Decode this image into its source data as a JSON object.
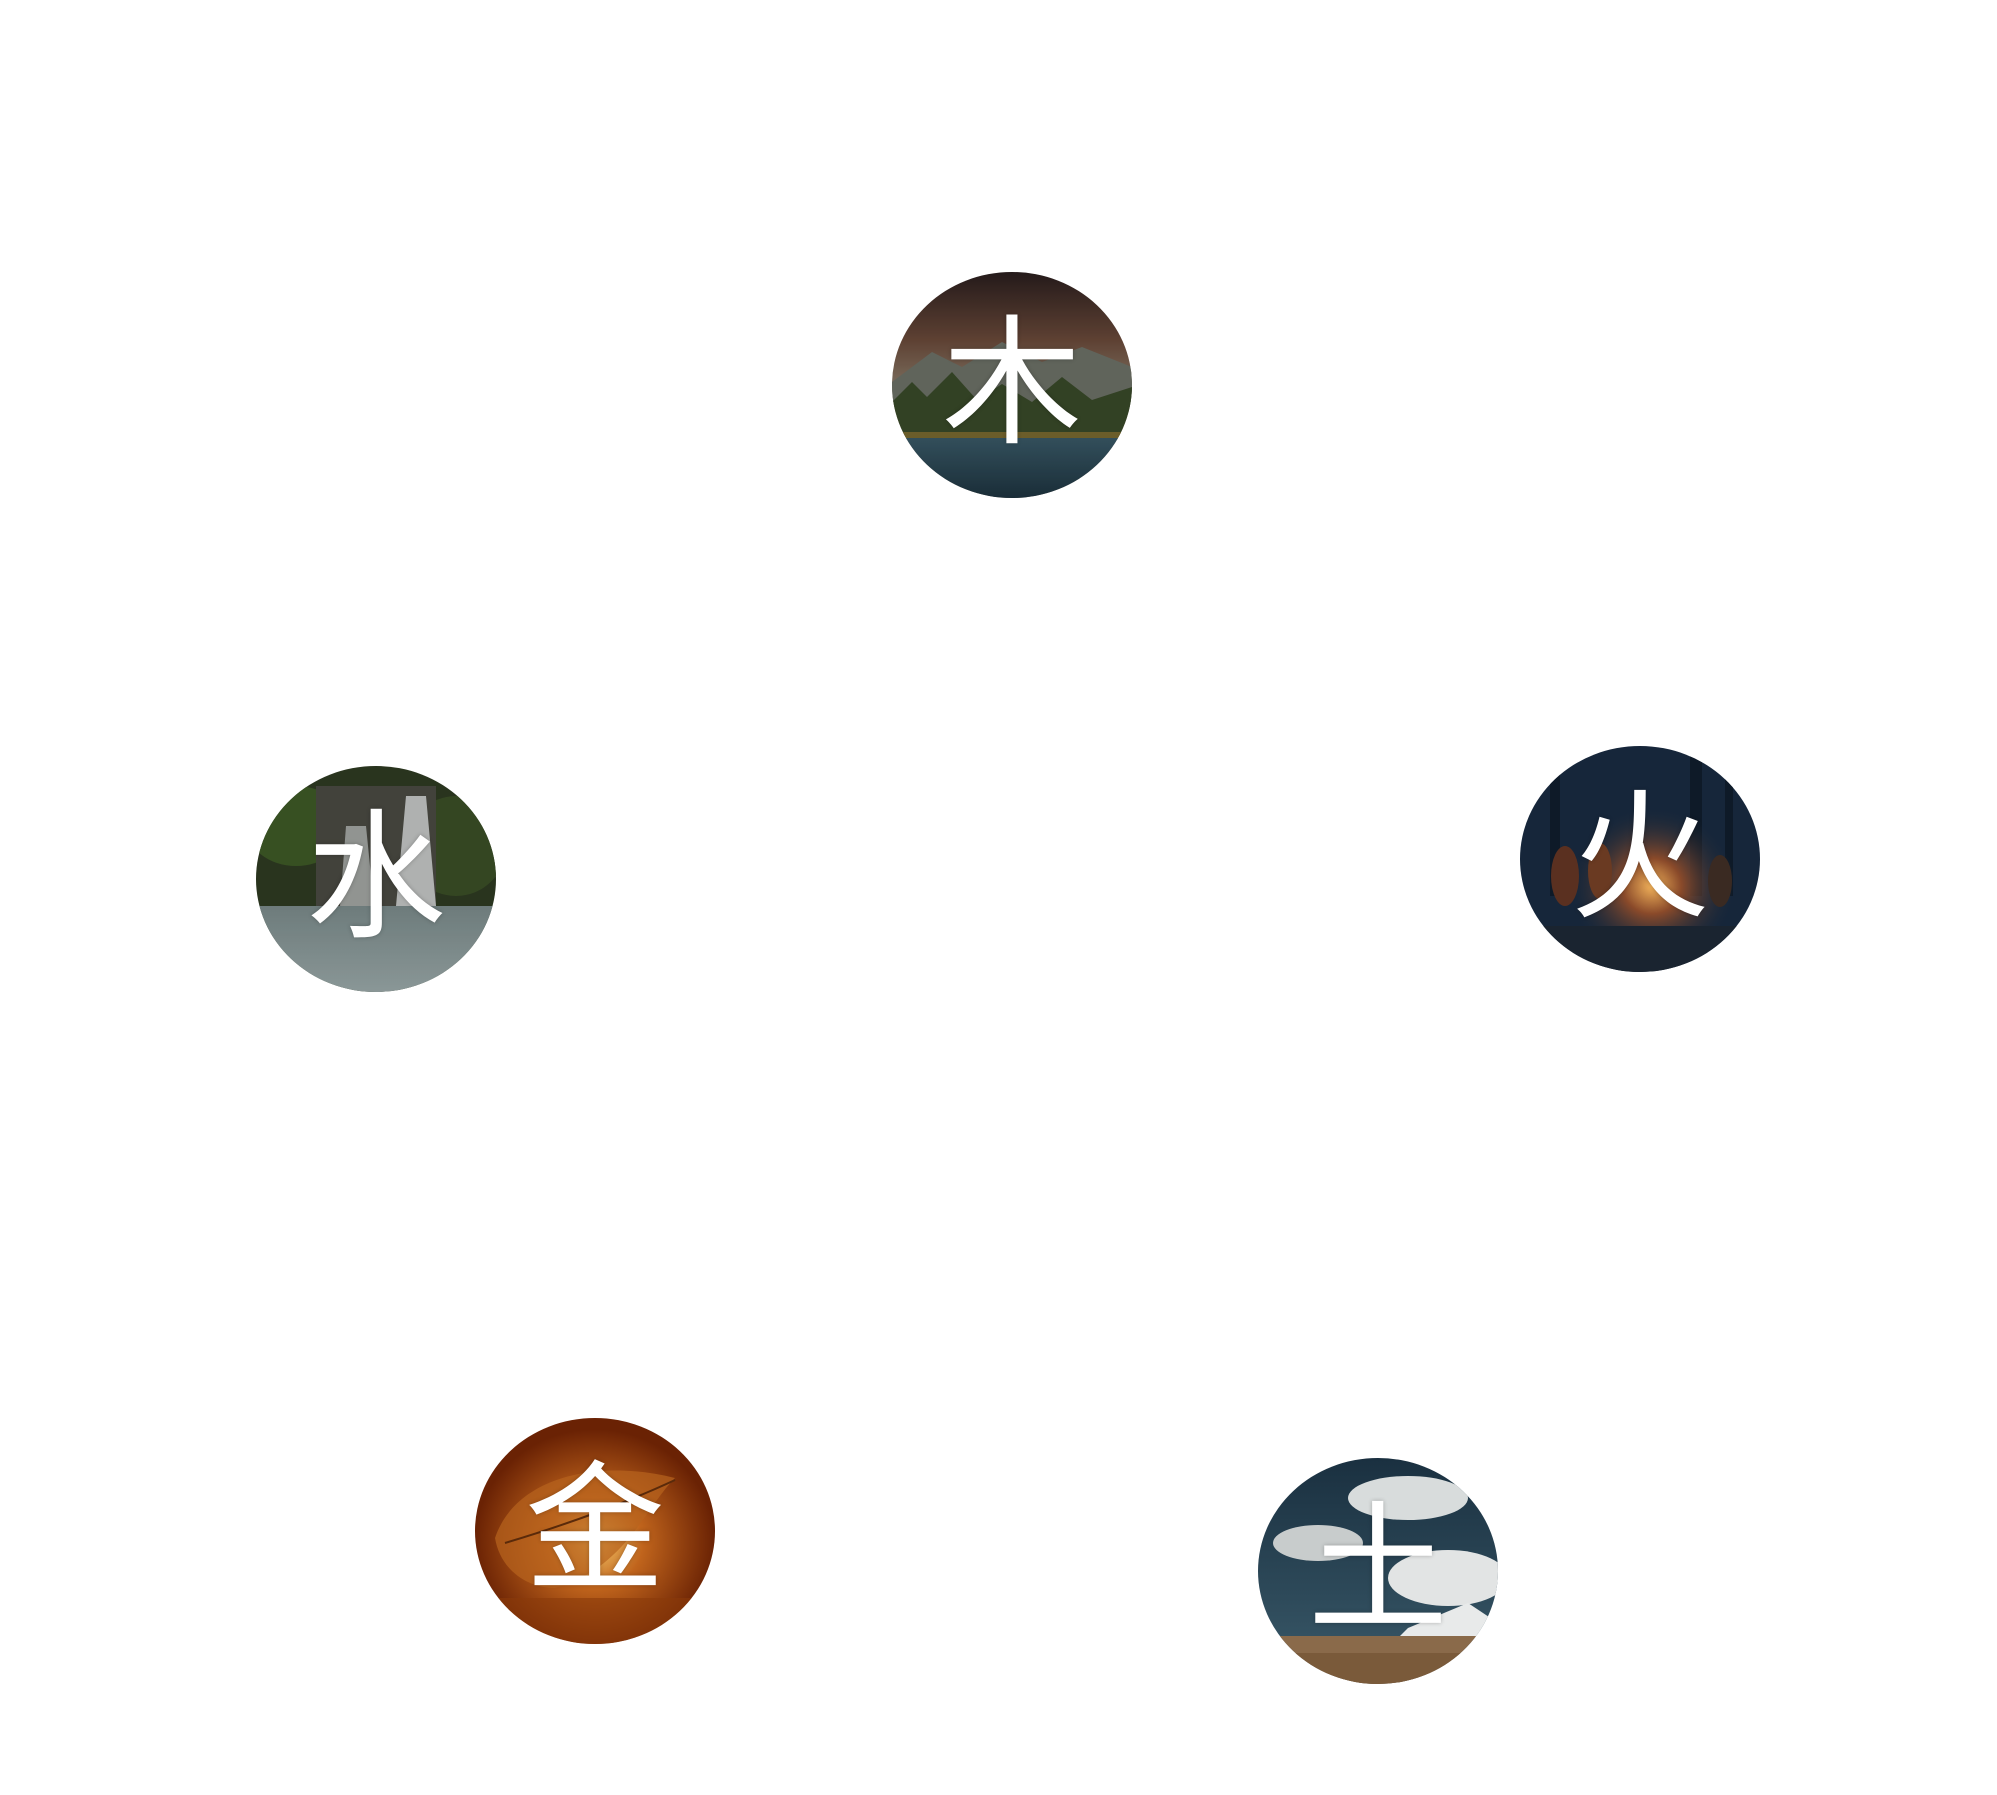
{
  "elements": {
    "wood": {
      "glyph": "木",
      "scene": "mountain-lake-forest"
    },
    "fire": {
      "glyph": "火",
      "scene": "night-campfire"
    },
    "earth": {
      "glyph": "土",
      "scene": "cloudy-desert-plain"
    },
    "metal": {
      "glyph": "金",
      "scene": "glowing-amber-leaf"
    },
    "water": {
      "glyph": "水",
      "scene": "mossy-waterfall"
    }
  },
  "colors": {
    "background": "#ffffff",
    "glyph": "#ffffff"
  }
}
